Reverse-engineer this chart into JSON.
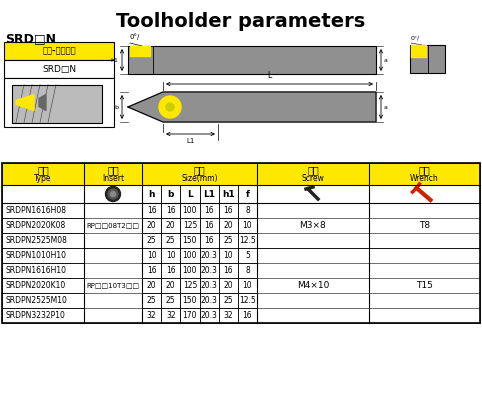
{
  "title": "Toolholder parameters",
  "background_color": "#ffffff",
  "yellow": "#FFE800",
  "rows": [
    [
      "SRDPN1616H08",
      "",
      "16",
      "16",
      "100",
      "16",
      "16",
      "8",
      "",
      ""
    ],
    [
      "SRDPN2020K08",
      "RP□08T2□",
      "20",
      "20",
      "125",
      "16",
      "20",
      "10",
      "M3×8",
      "T8"
    ],
    [
      "SRDPN2525M08",
      "",
      "25",
      "25",
      "150",
      "16",
      "25",
      "12.5",
      "",
      ""
    ],
    [
      "SRDPN1010H10",
      "",
      "10",
      "10",
      "100",
      "20.3",
      "10",
      "5",
      "",
      ""
    ],
    [
      "SRDPN1616H10",
      "",
      "16",
      "16",
      "100",
      "20.3",
      "16",
      "8",
      "",
      ""
    ],
    [
      "SRDPN2020K10",
      "RP□10T3□",
      "20",
      "20",
      "125",
      "20.3",
      "20",
      "10",
      "M4×10",
      "T15"
    ],
    [
      "SRDPN2525M10",
      "",
      "25",
      "25",
      "150",
      "20.3",
      "25",
      "12.5",
      "",
      ""
    ],
    [
      "SRDPN3232P10",
      "",
      "32",
      "32",
      "170",
      "20.3",
      "32",
      "16",
      "",
      ""
    ]
  ],
  "insert_label_1": "RP□□08T2□□",
  "insert_label_2": "RP□□10T3□□",
  "screw_1": "M3×8",
  "screw_2": "M4×10",
  "wrench_1": "T8",
  "wrench_2": "T15",
  "spec_cols": [
    "h",
    "b",
    "L",
    "L1",
    "h1",
    "f"
  ],
  "srdn_label": "SRD□N",
  "outer_label_zh": "外径-端面切削",
  "outer_label_en": "SRD□N"
}
